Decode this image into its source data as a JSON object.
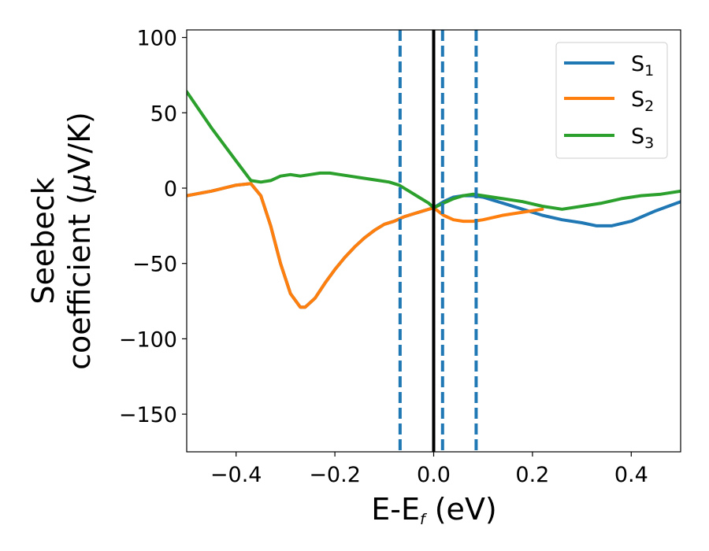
{
  "chart_data": {
    "type": "line",
    "xlabel": {
      "main": "E-E",
      "sub": "f",
      "rest": " (eV)"
    },
    "ylabel": {
      "line1": "Seebeck",
      "line2_pre": "coefficient  (",
      "mu": "μ",
      "line2_post": "V/K)"
    },
    "xlim": [
      -0.5,
      0.5
    ],
    "ylim": [
      -175,
      105
    ],
    "xticks": [
      {
        "v": -0.4,
        "label": "−0.4"
      },
      {
        "v": -0.2,
        "label": "−0.2"
      },
      {
        "v": 0.0,
        "label": "0.0"
      },
      {
        "v": 0.2,
        "label": "0.2"
      },
      {
        "v": 0.4,
        "label": "0.4"
      }
    ],
    "yticks": [
      {
        "v": 100,
        "label": "100"
      },
      {
        "v": 50,
        "label": "50"
      },
      {
        "v": 0,
        "label": "0"
      },
      {
        "v": -50,
        "label": "−50"
      },
      {
        "v": -100,
        "label": "−100"
      },
      {
        "v": -150,
        "label": "−150"
      }
    ],
    "grid": false,
    "legend_position": "top-right",
    "vlines": [
      {
        "x": 0.0,
        "style": "solid",
        "color": "#000000"
      },
      {
        "x": -0.068,
        "style": "dashed",
        "color": "#1f77b4"
      },
      {
        "x": 0.018,
        "style": "dashed",
        "color": "#1f77b4"
      },
      {
        "x": 0.086,
        "style": "dashed",
        "color": "#1f77b4"
      }
    ],
    "series": [
      {
        "name": "S",
        "sub": "1",
        "color": "#1f77b4",
        "x": [
          -0.5,
          -0.45,
          -0.4,
          -0.37,
          -0.35,
          -0.33,
          -0.31,
          -0.29,
          -0.27,
          -0.26,
          -0.24,
          -0.22,
          -0.2,
          -0.18,
          -0.16,
          -0.14,
          -0.12,
          -0.1,
          -0.08,
          -0.06,
          -0.04,
          -0.02,
          0.0,
          0.02,
          0.04,
          0.06,
          0.08,
          0.1,
          0.14,
          0.18,
          0.22,
          0.26,
          0.3,
          0.33,
          0.36,
          0.4,
          0.45,
          0.5
        ],
        "y": [
          -5,
          -2,
          2,
          3,
          -5,
          -25,
          -50,
          -70,
          -79,
          -79,
          -73,
          -63,
          -54,
          -46,
          -39,
          -33,
          -28,
          -24,
          -22,
          -19,
          -17,
          -15,
          -13,
          -9,
          -6,
          -5,
          -5,
          -6,
          -10,
          -14,
          -18,
          -21,
          -23,
          -25,
          -25,
          -22,
          -15,
          -9
        ]
      },
      {
        "name": "S",
        "sub": "2",
        "color": "#ff7f0e",
        "x": [
          -0.5,
          -0.45,
          -0.4,
          -0.37,
          -0.35,
          -0.33,
          -0.31,
          -0.29,
          -0.27,
          -0.26,
          -0.24,
          -0.22,
          -0.2,
          -0.18,
          -0.16,
          -0.14,
          -0.12,
          -0.1,
          -0.08,
          -0.06,
          -0.04,
          -0.02,
          0.0,
          0.02,
          0.04,
          0.06,
          0.08,
          0.1,
          0.14,
          0.18,
          0.22
        ],
        "y": [
          -5,
          -2,
          2,
          3,
          -5,
          -25,
          -50,
          -70,
          -79,
          -79,
          -73,
          -63,
          -54,
          -46,
          -39,
          -33,
          -28,
          -24,
          -22,
          -19,
          -17,
          -15,
          -13,
          -18,
          -21,
          -22,
          -22,
          -21,
          -18,
          -16,
          -14
        ]
      },
      {
        "name": "S",
        "sub": "3",
        "color": "#2ca02c",
        "x": [
          -0.5,
          -0.45,
          -0.4,
          -0.37,
          -0.35,
          -0.33,
          -0.31,
          -0.29,
          -0.27,
          -0.25,
          -0.23,
          -0.21,
          -0.19,
          -0.17,
          -0.15,
          -0.13,
          -0.11,
          -0.09,
          -0.07,
          -0.05,
          -0.03,
          -0.01,
          0.0,
          0.02,
          0.04,
          0.06,
          0.08,
          0.1,
          0.14,
          0.18,
          0.22,
          0.26,
          0.3,
          0.34,
          0.38,
          0.42,
          0.46,
          0.5
        ],
        "y": [
          64,
          40,
          18,
          5,
          4,
          5,
          8,
          9,
          8,
          9,
          10,
          10,
          9,
          8,
          7,
          6,
          5,
          4,
          2,
          -2,
          -6,
          -10,
          -13,
          -10,
          -7,
          -5,
          -4,
          -5,
          -7,
          -9,
          -12,
          -14,
          -12,
          -10,
          -7,
          -5,
          -4,
          -2
        ]
      }
    ]
  }
}
